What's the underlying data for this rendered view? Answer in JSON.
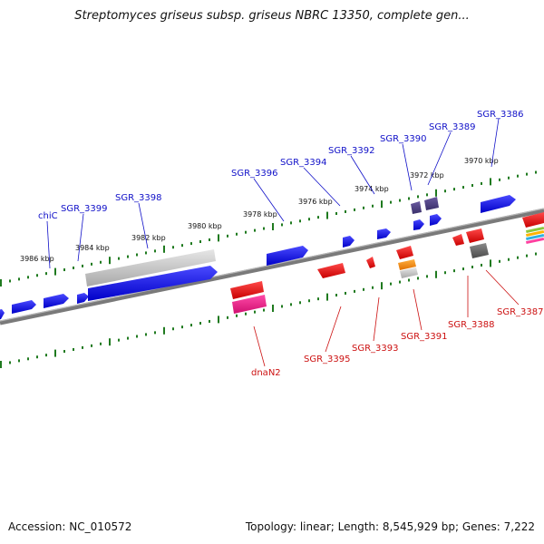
{
  "title": "Streptomyces griseus subsp. griseus NBRC 13350, complete gen...",
  "footer": {
    "accession": "Accession: NC_010572",
    "topology": "Topology: linear; Length: 8,545,929 bp; Genes: 7,222"
  },
  "colors": {
    "forward_label": "#1010c8",
    "reverse_label": "#cc1010",
    "forward_gene": "#1a1aee",
    "reverse_gene": "#ee1111",
    "tick": "#1f7a1f",
    "backbone": "#7a7a7a"
  },
  "scale_labels": [
    "3986 kbp",
    "3984 kbp",
    "3982 kbp",
    "3980 kbp",
    "3978 kbp",
    "3976 kbp",
    "3974 kbp",
    "3972 kbp",
    "3970 kbp"
  ],
  "gene_labels_top": [
    "chiC",
    "SGR_3399",
    "SGR_3398",
    "SGR_3396",
    "SGR_3394",
    "SGR_3392",
    "SGR_3390",
    "SGR_3389",
    "SGR_3386"
  ],
  "gene_labels_bottom": [
    "dnaN2",
    "SGR_3395",
    "SGR_3393",
    "SGR_3391",
    "SGR_3388",
    "SGR_3387"
  ]
}
